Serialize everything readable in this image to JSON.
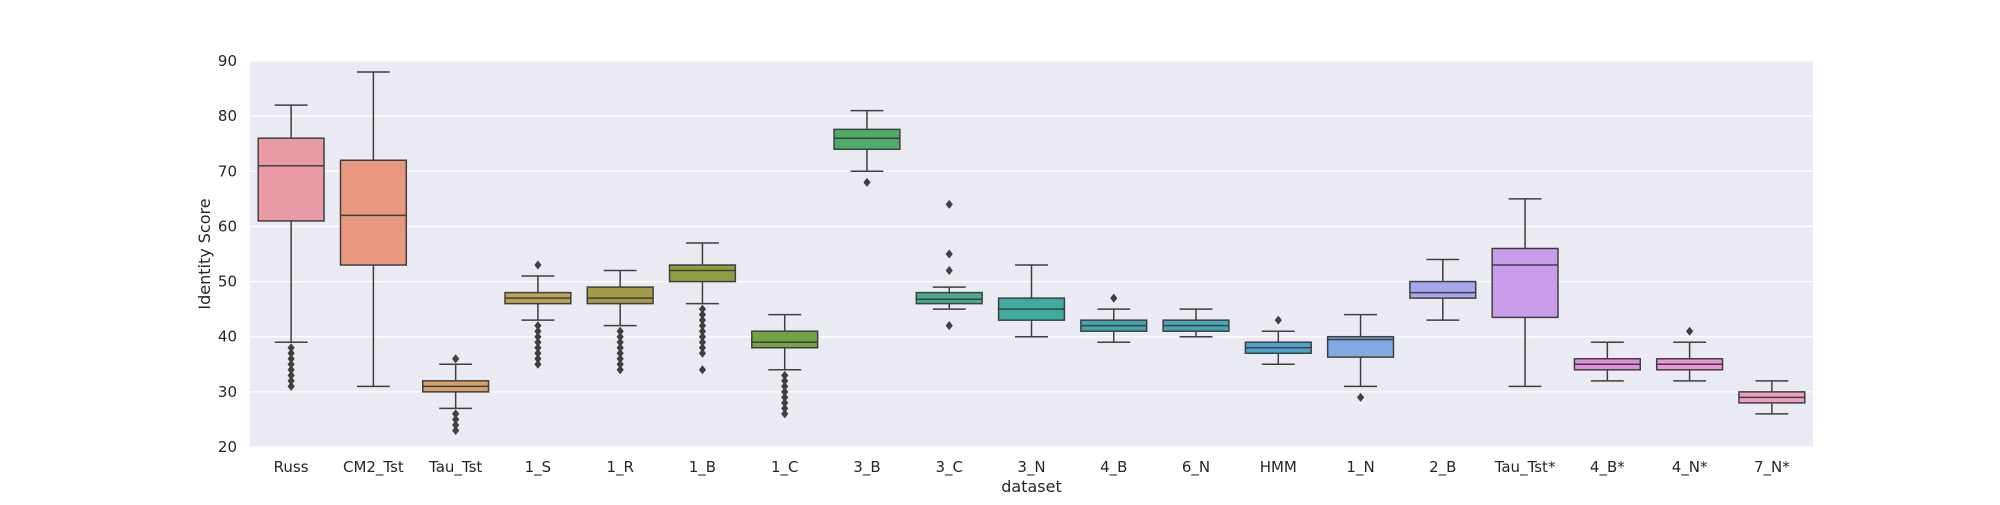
{
  "chart_data": {
    "type": "box",
    "title": "",
    "xlabel": "dataset",
    "ylabel": "Identity Score",
    "ylim": [
      20,
      90
    ],
    "yticks": [
      20,
      30,
      40,
      50,
      60,
      70,
      80,
      90
    ],
    "grid": true,
    "legend": "none",
    "colors": {
      "background": "#EAEAF2",
      "grid": "#FFFFFF",
      "line": "#3F3F3F",
      "text": "#262626"
    },
    "categories": [
      "Russ",
      "CM2_Tst",
      "Tau_Tst",
      "1_S",
      "1_R",
      "1_B",
      "1_C",
      "3_B",
      "3_C",
      "3_N",
      "4_B",
      "6_N",
      "HMM",
      "1_N",
      "2_B",
      "Tau_Tst*",
      "4_B*",
      "4_N*",
      "7_N*"
    ],
    "boxes": [
      {
        "category": "Russ",
        "color": "#E99AA4",
        "whisker_low": 39,
        "q1": 61,
        "median": 71,
        "q3": 76,
        "whisker_high": 82,
        "outliers": [
          31,
          32,
          33,
          34,
          35,
          36,
          37,
          38
        ]
      },
      {
        "category": "CM2_Tst",
        "color": "#E8987F",
        "whisker_low": 31,
        "q1": 53,
        "median": 62,
        "q3": 72,
        "whisker_high": 88,
        "outliers": []
      },
      {
        "category": "Tau_Tst",
        "color": "#D3A264",
        "whisker_low": 27,
        "q1": 30,
        "median": 31,
        "q3": 32,
        "whisker_high": 35,
        "outliers": [
          23,
          24,
          25,
          26,
          36
        ]
      },
      {
        "category": "1_S",
        "color": "#BCA253",
        "whisker_low": 43,
        "q1": 46,
        "median": 47,
        "q3": 48,
        "whisker_high": 51,
        "outliers": [
          35,
          36,
          37,
          38,
          39,
          40,
          41,
          42,
          53
        ]
      },
      {
        "category": "1_R",
        "color": "#A29C46",
        "whisker_low": 42,
        "q1": 46,
        "median": 47,
        "q3": 49,
        "whisker_high": 52,
        "outliers": [
          34,
          35,
          36,
          37,
          38,
          39,
          40,
          41
        ]
      },
      {
        "category": "1_B",
        "color": "#8E9E43",
        "whisker_low": 46,
        "q1": 50,
        "median": 52,
        "q3": 53,
        "whisker_high": 57,
        "outliers": [
          34,
          37,
          38,
          39,
          40,
          41,
          42,
          43,
          44,
          45
        ]
      },
      {
        "category": "1_C",
        "color": "#72A344",
        "whisker_low": 34,
        "q1": 38,
        "median": 39,
        "q3": 41,
        "whisker_high": 44,
        "outliers": [
          26,
          27,
          28,
          29,
          30,
          31,
          32,
          33
        ]
      },
      {
        "category": "3_B",
        "color": "#4DAD67",
        "whisker_low": 70,
        "q1": 74,
        "median": 76,
        "q3": 77.6,
        "whisker_high": 81,
        "outliers": [
          68
        ]
      },
      {
        "category": "3_C",
        "color": "#45AD8C",
        "whisker_low": 45,
        "q1": 46,
        "median": 46.8,
        "q3": 48,
        "whisker_high": 49,
        "outliers": [
          42,
          52,
          55,
          64
        ]
      },
      {
        "category": "3_N",
        "color": "#3FAA9F",
        "whisker_low": 40,
        "q1": 43,
        "median": 45,
        "q3": 47,
        "whisker_high": 53,
        "outliers": []
      },
      {
        "category": "4_B",
        "color": "#41A7AC",
        "whisker_low": 39,
        "q1": 41,
        "median": 42,
        "q3": 43,
        "whisker_high": 45,
        "outliers": [
          47
        ]
      },
      {
        "category": "6_N",
        "color": "#44A6BB",
        "whisker_low": 40,
        "q1": 41,
        "median": 42,
        "q3": 43,
        "whisker_high": 45,
        "outliers": []
      },
      {
        "category": "HMM",
        "color": "#4AA5CD",
        "whisker_low": 35,
        "q1": 37,
        "median": 38,
        "q3": 39,
        "whisker_high": 41,
        "outliers": [
          43
        ]
      },
      {
        "category": "1_N",
        "color": "#82A9E4",
        "whisker_low": 31,
        "q1": 36.3,
        "median": 39.5,
        "q3": 40,
        "whisker_high": 44,
        "outliers": [
          29
        ]
      },
      {
        "category": "2_B",
        "color": "#A7A7EE",
        "whisker_low": 43,
        "q1": 47,
        "median": 48,
        "q3": 50,
        "whisker_high": 54,
        "outliers": []
      },
      {
        "category": "Tau_Tst*",
        "color": "#C89BEB",
        "whisker_low": 31,
        "q1": 43.5,
        "median": 53,
        "q3": 56,
        "whisker_high": 65,
        "outliers": []
      },
      {
        "category": "4_B*",
        "color": "#E28FE2",
        "whisker_low": 32,
        "q1": 34,
        "median": 35,
        "q3": 36,
        "whisker_high": 39,
        "outliers": []
      },
      {
        "category": "4_N*",
        "color": "#EB95D5",
        "whisker_low": 32,
        "q1": 34,
        "median": 35,
        "q3": 36,
        "whisker_high": 39,
        "outliers": [
          41
        ]
      },
      {
        "category": "7_N*",
        "color": "#ED9DC0",
        "whisker_low": 26,
        "q1": 28,
        "median": 29,
        "q3": 30,
        "whisker_high": 32,
        "outliers": []
      }
    ]
  }
}
